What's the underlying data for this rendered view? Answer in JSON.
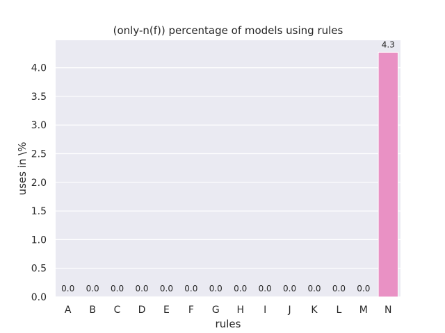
{
  "chart_data": {
    "type": "bar",
    "title": "(only-n(f)) percentage of models using rules",
    "xlabel": "rules",
    "ylabel": "uses in \\%",
    "categories": [
      "A",
      "B",
      "C",
      "D",
      "E",
      "F",
      "G",
      "H",
      "I",
      "J",
      "K",
      "L",
      "M",
      "N"
    ],
    "values": [
      0.0,
      0.0,
      0.0,
      0.0,
      0.0,
      0.0,
      0.0,
      0.0,
      0.0,
      0.0,
      0.0,
      0.0,
      0.0,
      4.27
    ],
    "data_labels": [
      "0.0",
      "0.0",
      "0.0",
      "0.0",
      "0.0",
      "0.0",
      "0.0",
      "0.0",
      "0.0",
      "0.0",
      "0.0",
      "0.0",
      "0.0",
      "4.3"
    ],
    "yticks": [
      "0.0",
      "0.5",
      "1.0",
      "1.5",
      "2.0",
      "2.5",
      "3.0",
      "3.5",
      "4.0"
    ],
    "ylim": [
      0,
      4.48
    ],
    "grid": true,
    "legend": "none",
    "colors": {
      "background": "#eaeaf2",
      "grid": "#ffffff",
      "text": "#262626",
      "bar_highlight": "#e991c4"
    }
  }
}
